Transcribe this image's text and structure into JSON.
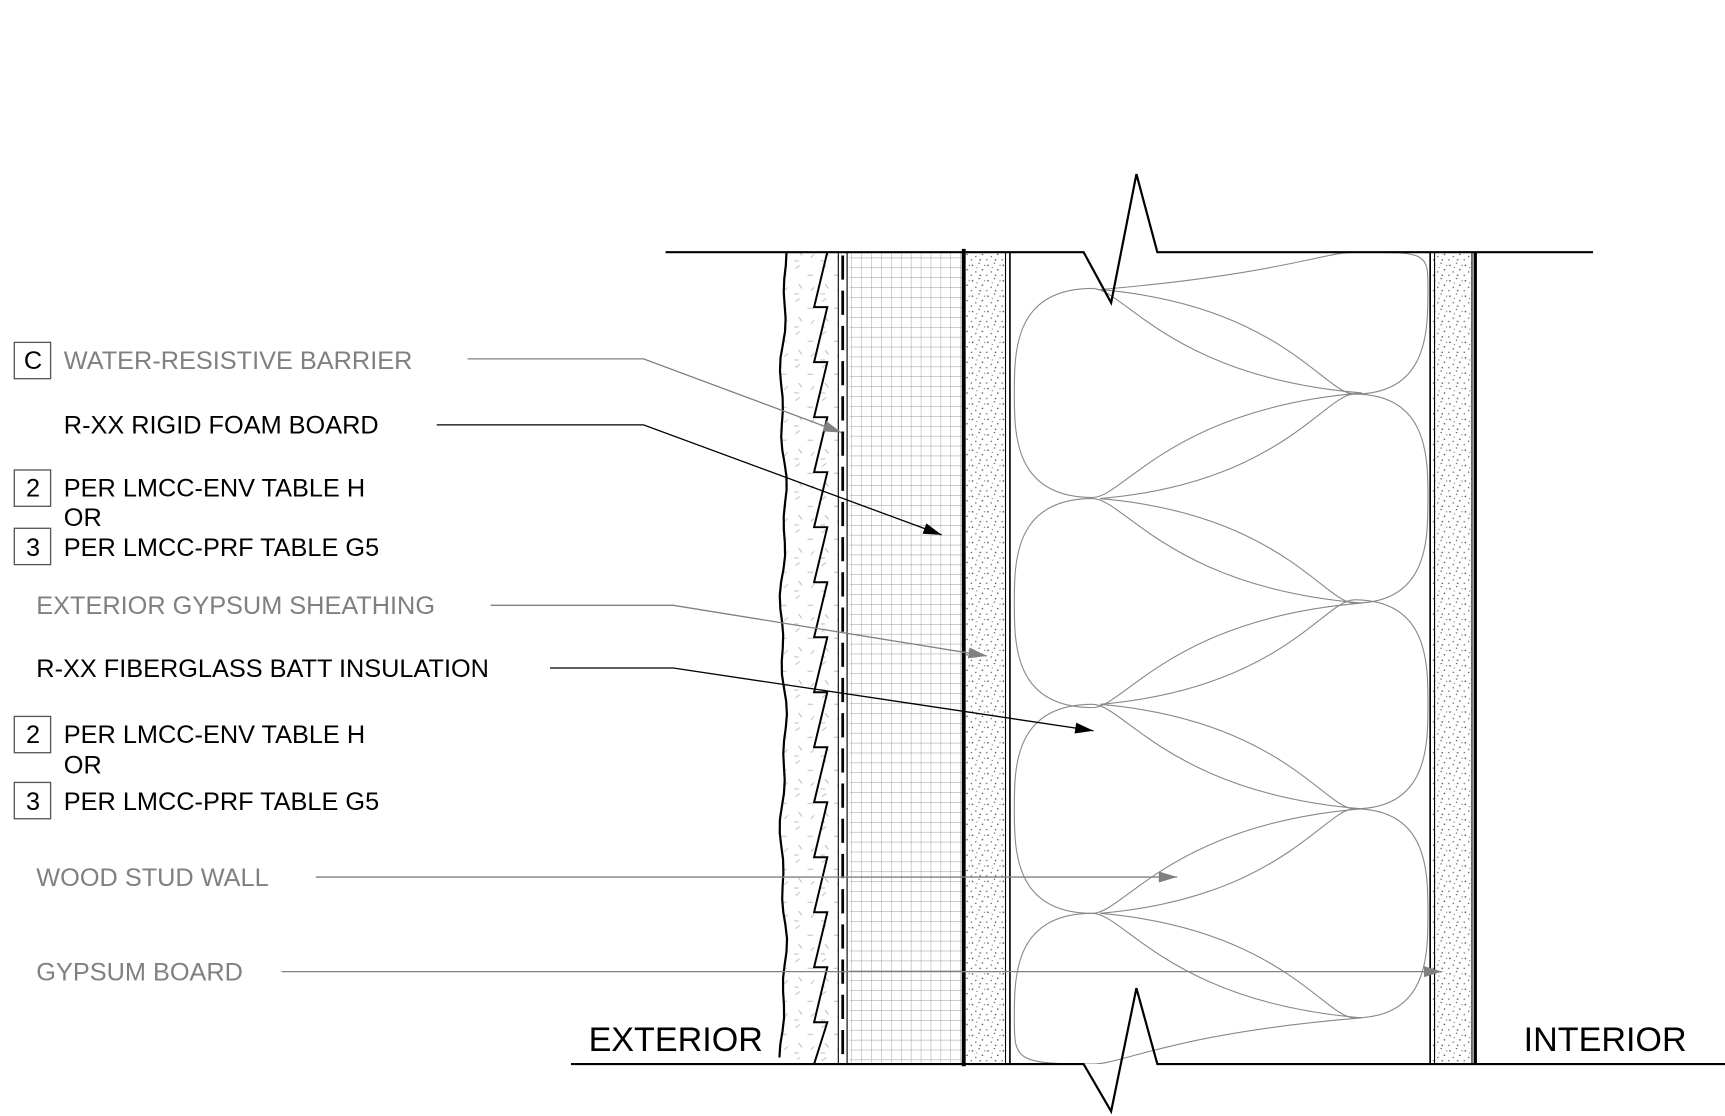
{
  "title": "",
  "sides": {
    "exterior": "EXTERIOR",
    "interior": "INTERIOR"
  },
  "colors": {
    "primary_leader": "#000000",
    "secondary_leader": "#808080",
    "line": "#000000"
  },
  "labels": [
    {
      "tag": "C",
      "text": "WATER-RESISTIVE BARRIER",
      "tone": "gray"
    },
    {
      "tag": "",
      "text": "R-XX RIGID FOAM BOARD",
      "tone": "black"
    },
    {
      "tag": "2",
      "text": "PER LMCC-ENV TABLE H",
      "tone": "black"
    },
    {
      "tag": "",
      "text": "OR",
      "tone": "black"
    },
    {
      "tag": "3",
      "text": "PER LMCC-PRF TABLE G5",
      "tone": "black"
    },
    {
      "tag": "",
      "text": "EXTERIOR GYPSUM SHEATHING",
      "tone": "gray"
    },
    {
      "tag": "",
      "text": "R-XX FIBERGLASS BATT INSULATION",
      "tone": "black"
    },
    {
      "tag": "2",
      "text": "PER LMCC-ENV TABLE H",
      "tone": "black"
    },
    {
      "tag": "",
      "text": "OR",
      "tone": "black"
    },
    {
      "tag": "3",
      "text": "PER LMCC-PRF TABLE G5",
      "tone": "black"
    },
    {
      "tag": "",
      "text": "WOOD STUD WALL",
      "tone": "gray"
    },
    {
      "tag": "",
      "text": "GYPSUM BOARD",
      "tone": "gray"
    }
  ],
  "layers": [
    "stucco-veneer",
    "water-resistive-barrier",
    "rigid-foam-board",
    "exterior-gypsum-sheathing",
    "fiberglass-batt-insulation",
    "gypsum-board"
  ]
}
